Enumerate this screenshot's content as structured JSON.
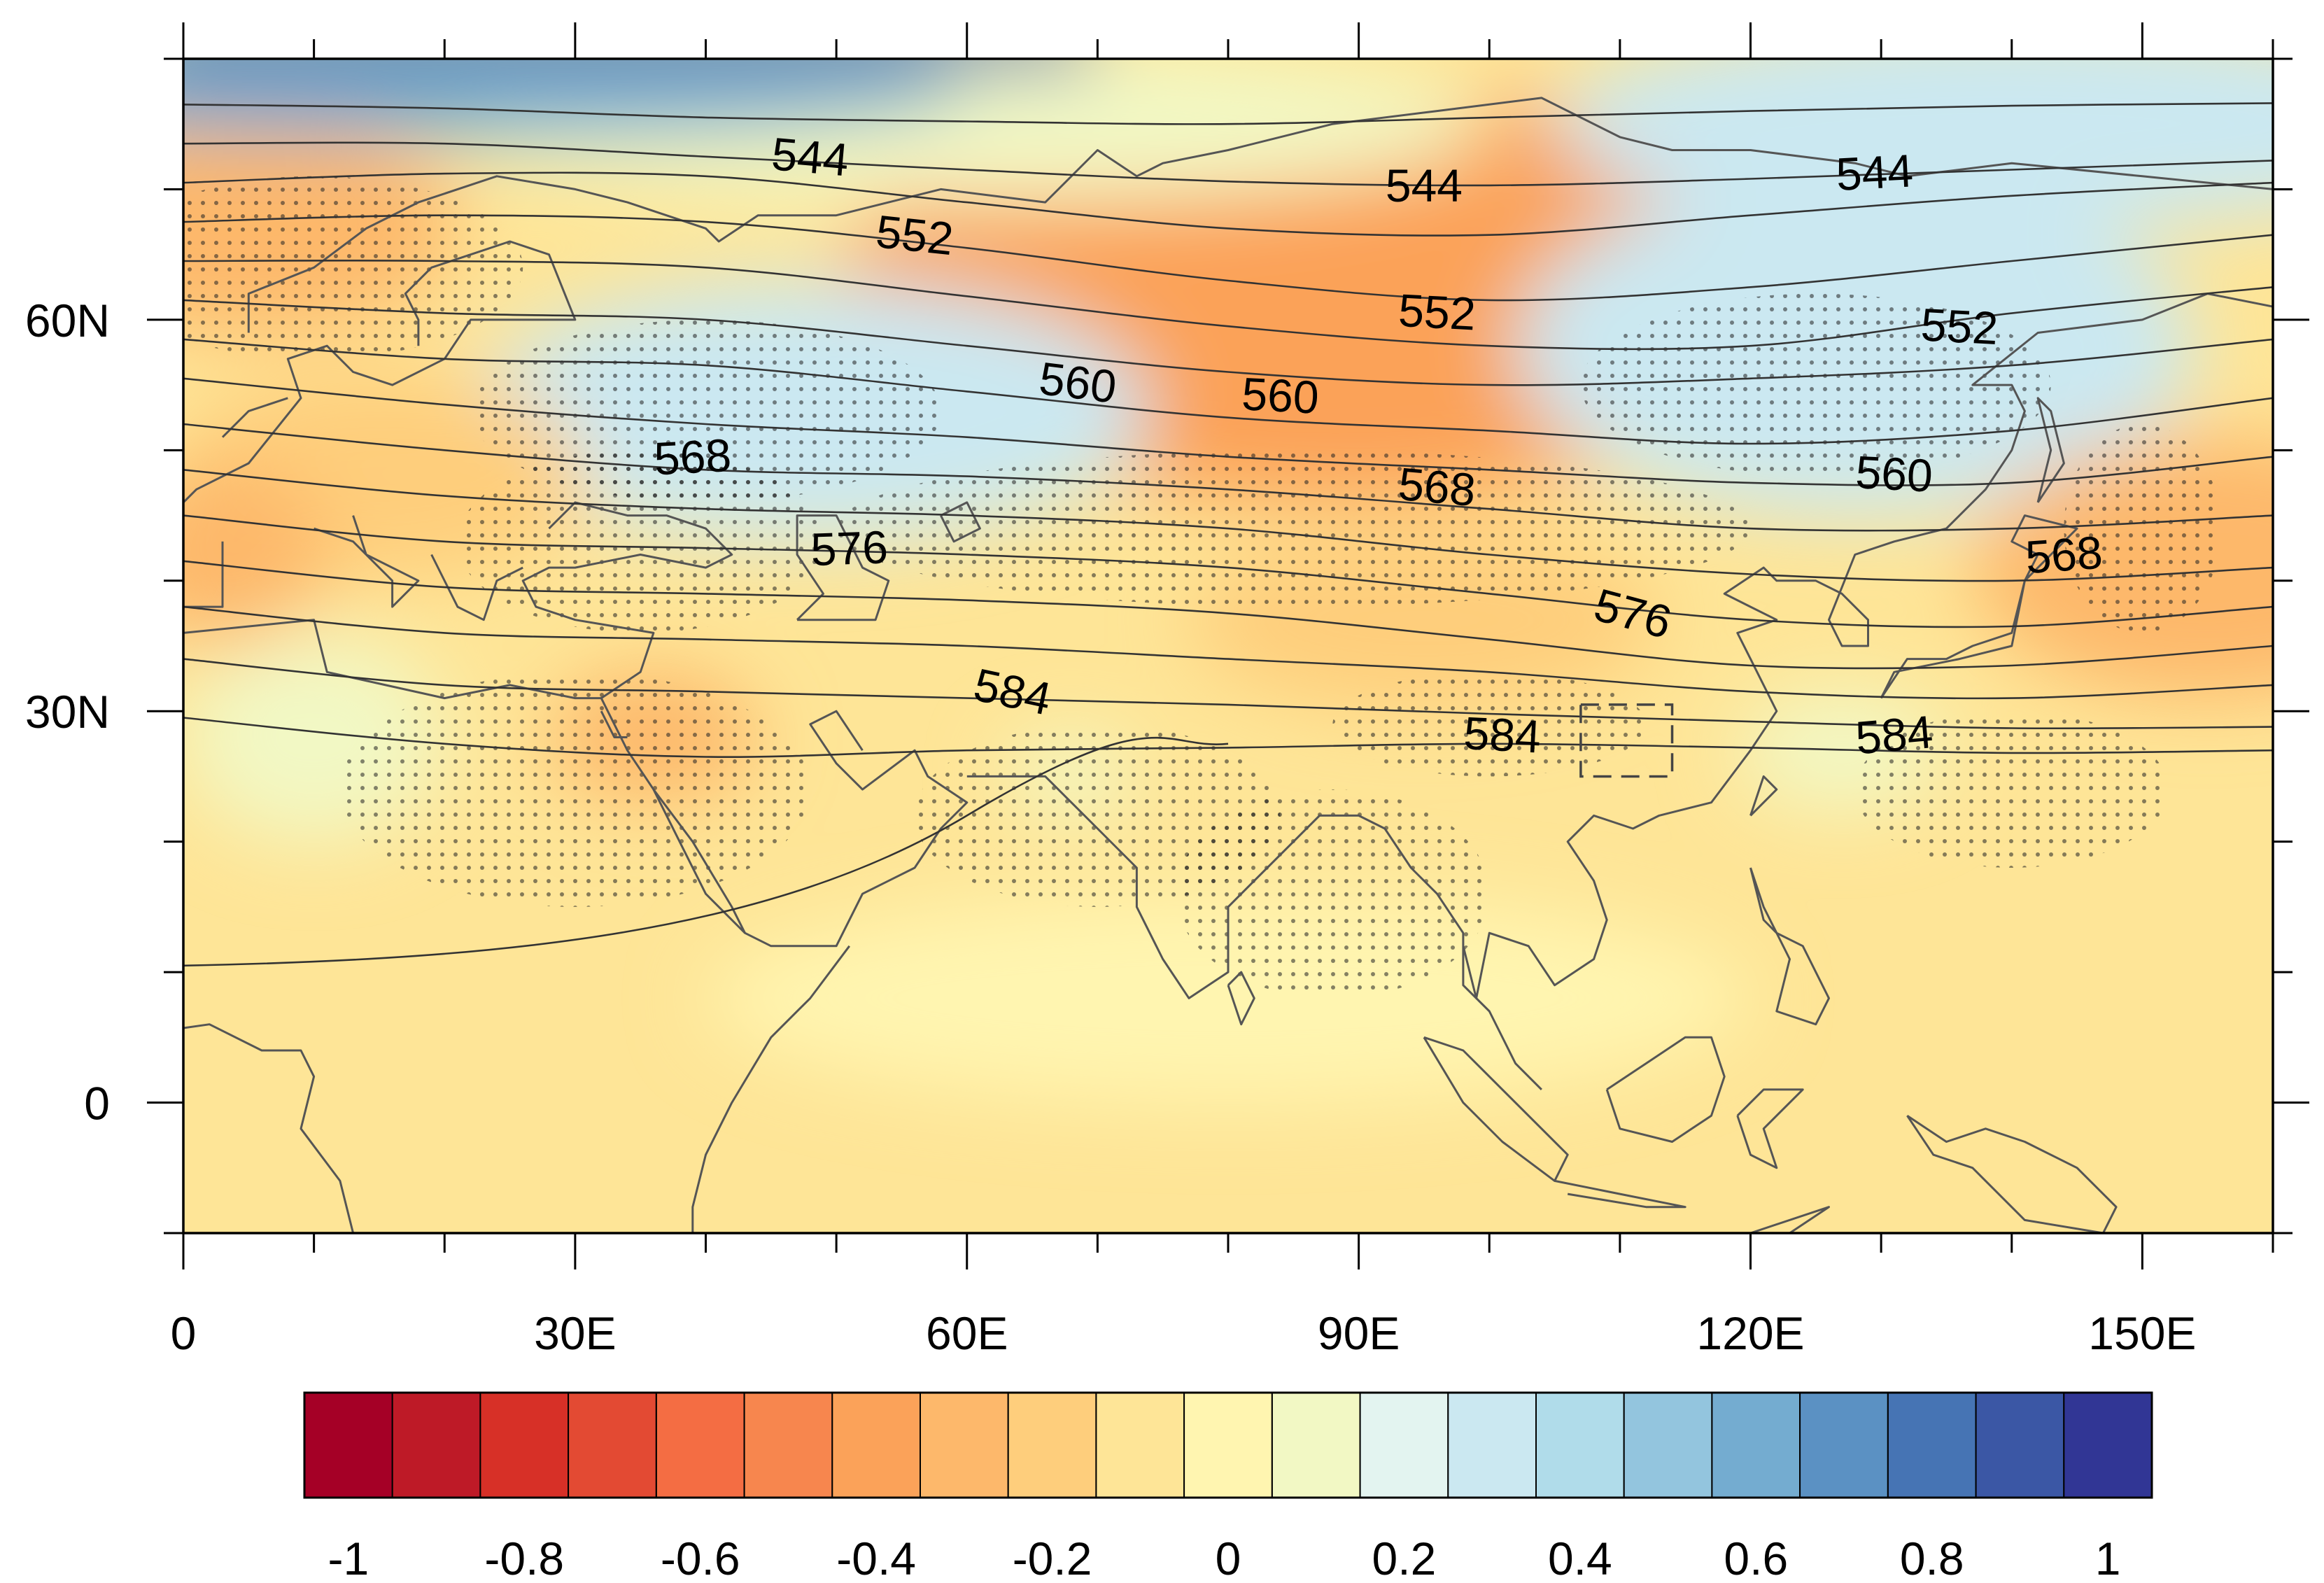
{
  "map": {
    "lon_range": [
      0,
      160
    ],
    "lat_range": [
      -10,
      80
    ],
    "x_tick_labels": [
      {
        "lon": 0,
        "label": "0"
      },
      {
        "lon": 30,
        "label": "30E"
      },
      {
        "lon": 60,
        "label": "60E"
      },
      {
        "lon": 90,
        "label": "90E"
      },
      {
        "lon": 120,
        "label": "120E"
      },
      {
        "lon": 150,
        "label": "150E"
      }
    ],
    "y_tick_labels": [
      {
        "lat": 60,
        "label": "60N"
      },
      {
        "lat": 30,
        "label": "30N"
      },
      {
        "lat": 0,
        "label": "0"
      }
    ],
    "contour_labels": [
      {
        "text": "544",
        "lon": 48,
        "lat": 72.5,
        "rot": 5
      },
      {
        "text": "544",
        "lon": 95,
        "lat": 70.3,
        "rot": 0
      },
      {
        "text": "544",
        "lon": 129.5,
        "lat": 71.3,
        "rot": -3
      },
      {
        "text": "552",
        "lon": 56,
        "lat": 66.5,
        "rot": 6
      },
      {
        "text": "552",
        "lon": 96,
        "lat": 60.6,
        "rot": 3
      },
      {
        "text": "552",
        "lon": 136,
        "lat": 59.5,
        "rot": 3
      },
      {
        "text": "560",
        "lon": 68.5,
        "lat": 55.2,
        "rot": 7
      },
      {
        "text": "560",
        "lon": 84,
        "lat": 54.2,
        "rot": 3
      },
      {
        "text": "560",
        "lon": 131,
        "lat": 48.2,
        "rot": 3
      },
      {
        "text": "568",
        "lon": 39,
        "lat": 49.5,
        "rot": -3
      },
      {
        "text": "568",
        "lon": 96,
        "lat": 47.2,
        "rot": 5
      },
      {
        "text": "568",
        "lon": 144,
        "lat": 42,
        "rot": -4
      },
      {
        "text": "576",
        "lon": 51,
        "lat": 42.5,
        "rot": -2
      },
      {
        "text": "576",
        "lon": 111,
        "lat": 37.5,
        "rot": 15
      },
      {
        "text": "584",
        "lon": 63.5,
        "lat": 31.5,
        "rot": 12
      },
      {
        "text": "584",
        "lon": 101,
        "lat": 28.2,
        "rot": 3
      },
      {
        "text": "584",
        "lon": 131,
        "lat": 28.2,
        "rot": -5
      }
    ],
    "box": {
      "lon_min": 107,
      "lon_max": 114,
      "lat_min": 25,
      "lat_max": 30.5
    }
  },
  "colorbar": {
    "colors": [
      "#a50026",
      "#be1a27",
      "#d73027",
      "#e34a33",
      "#f46d43",
      "#f7864e",
      "#fba259",
      "#fdb86b",
      "#fece7c",
      "#fee597",
      "#fff5b0",
      "#f2f8c4",
      "#e3f4f0",
      "#cbe8f1",
      "#b0dcea",
      "#93c5de",
      "#74acd0",
      "#5b91c3",
      "#4674b4",
      "#3b57a5",
      "#313695"
    ],
    "tick_labels": [
      "-1",
      "-0.8",
      "-0.6",
      "-0.4",
      "-0.2",
      "0",
      "0.2",
      "0.4",
      "0.6",
      "0.8",
      "1"
    ]
  },
  "anomaly_centers": [
    {
      "lon": 82,
      "lat": 65,
      "rx": 24,
      "ry": 9,
      "value": -0.85
    },
    {
      "lon": 88,
      "lat": 62,
      "rx": 38,
      "ry": 16,
      "value": -0.45
    },
    {
      "lon": 5,
      "lat": 67,
      "rx": 16,
      "ry": 8,
      "value": -0.35
    },
    {
      "lon": 45,
      "lat": 55,
      "rx": 14,
      "ry": 5.5,
      "value": 0.45
    },
    {
      "lon": 48,
      "lat": 53,
      "rx": 26,
      "ry": 10,
      "value": 0.25
    },
    {
      "lon": 135,
      "lat": 58,
      "rx": 16,
      "ry": 6,
      "value": 0.45
    },
    {
      "lon": 128,
      "lat": 58,
      "rx": 26,
      "ry": 13,
      "value": 0.25
    },
    {
      "lon": 158,
      "lat": 42,
      "rx": 12,
      "ry": 6,
      "value": -0.5
    },
    {
      "lon": 155,
      "lat": 41,
      "rx": 18,
      "ry": 10,
      "value": -0.3
    },
    {
      "lon": 15,
      "lat": 48,
      "rx": 16,
      "ry": 8,
      "value": -0.25
    },
    {
      "lon": 3,
      "lat": 42,
      "rx": 8,
      "ry": 7,
      "value": -0.3
    },
    {
      "lon": 36,
      "lat": 28,
      "rx": 8,
      "ry": 5,
      "value": -0.3
    },
    {
      "lon": 95,
      "lat": 37,
      "rx": 18,
      "ry": 7,
      "value": -0.25
    },
    {
      "lon": 127,
      "lat": 27,
      "rx": 8,
      "ry": 4.5,
      "value": 0.1
    },
    {
      "lon": 68,
      "lat": 25,
      "rx": 5,
      "ry": 3,
      "value": 0.1
    },
    {
      "lon": 60,
      "lat": 75,
      "rx": 40,
      "ry": 6,
      "value": 0.1
    },
    {
      "lon": 140,
      "lat": 75,
      "rx": 35,
      "ry": 8,
      "value": 0.3
    },
    {
      "lon": 20,
      "lat": 78,
      "rx": 40,
      "ry": 4,
      "value": 0.55
    },
    {
      "lon": 80,
      "lat": 8,
      "rx": 40,
      "ry": 8,
      "value": 0.02
    },
    {
      "lon": 10,
      "lat": 28,
      "rx": 10,
      "ry": 8,
      "value": 0.05
    }
  ],
  "stipple_regions": [
    {
      "lon": 10,
      "lat": 64,
      "rx": 16,
      "ry": 7
    },
    {
      "lon": 40,
      "lat": 53,
      "rx": 18,
      "ry": 7
    },
    {
      "lon": 35,
      "lat": 43,
      "rx": 14,
      "ry": 7
    },
    {
      "lon": 85,
      "lat": 44,
      "rx": 35,
      "ry": 6
    },
    {
      "lon": 125,
      "lat": 55,
      "rx": 18,
      "ry": 7
    },
    {
      "lon": 30,
      "lat": 24,
      "rx": 18,
      "ry": 9
    },
    {
      "lon": 70,
      "lat": 22,
      "rx": 14,
      "ry": 7
    },
    {
      "lon": 88,
      "lat": 16,
      "rx": 12,
      "ry": 8
    },
    {
      "lon": 100,
      "lat": 29,
      "rx": 12,
      "ry": 4
    },
    {
      "lon": 140,
      "lat": 24,
      "rx": 12,
      "ry": 6
    },
    {
      "lon": 150,
      "lat": 44,
      "rx": 6,
      "ry": 8
    }
  ]
}
